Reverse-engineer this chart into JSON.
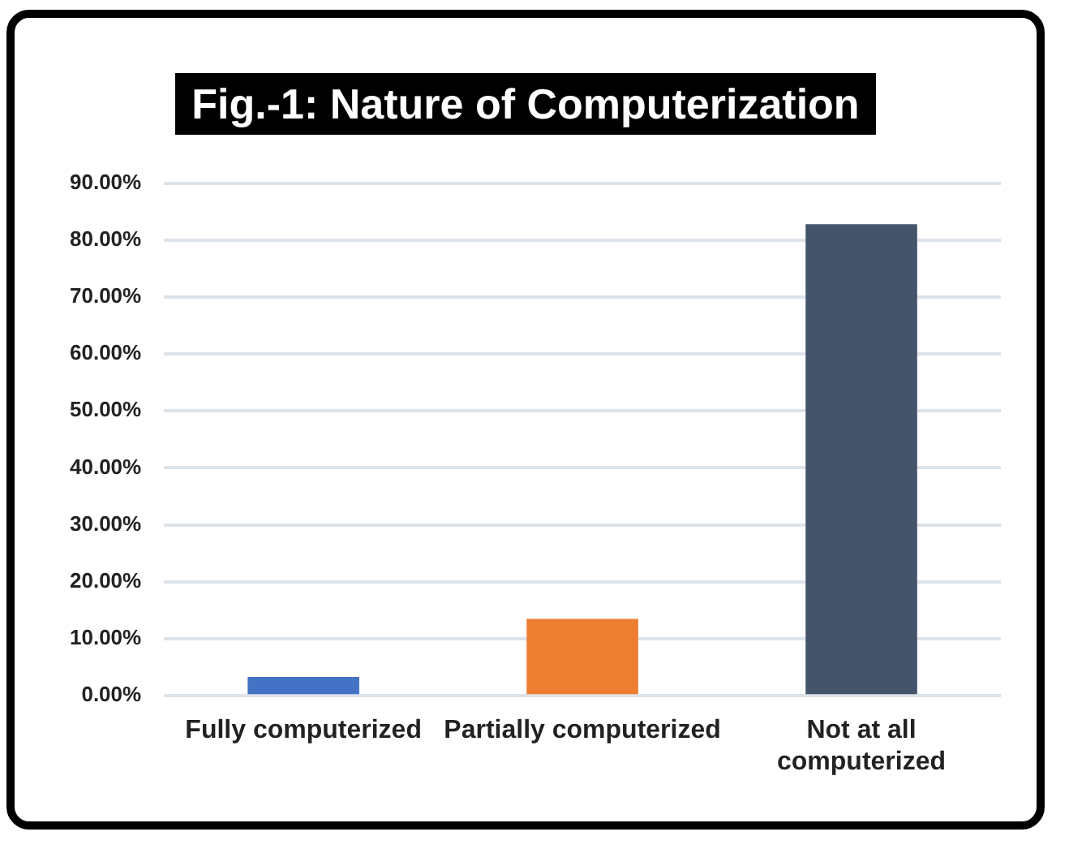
{
  "chart_data": {
    "type": "bar",
    "title": "Fig.-1: Nature of Computerization",
    "categories": [
      "Fully computerized",
      "Partially computerized",
      "Not at all computerized"
    ],
    "values": [
      3.3,
      13.5,
      82.8
    ],
    "colors": [
      "#4472c4",
      "#ed7d31",
      "#44546a"
    ],
    "ylim": [
      0,
      90
    ],
    "yticks": [
      {
        "value": 0,
        "label": "0.00%"
      },
      {
        "value": 10,
        "label": "10.00%"
      },
      {
        "value": 20,
        "label": "20.00%"
      },
      {
        "value": 30,
        "label": "30.00%"
      },
      {
        "value": 40,
        "label": "40.00%"
      },
      {
        "value": 50,
        "label": "50.00%"
      },
      {
        "value": 60,
        "label": "60.00%"
      },
      {
        "value": 70,
        "label": "70.00%"
      },
      {
        "value": 80,
        "label": "80.00%"
      },
      {
        "value": 90,
        "label": "90.00%"
      }
    ],
    "grid": "y",
    "legend": false
  }
}
